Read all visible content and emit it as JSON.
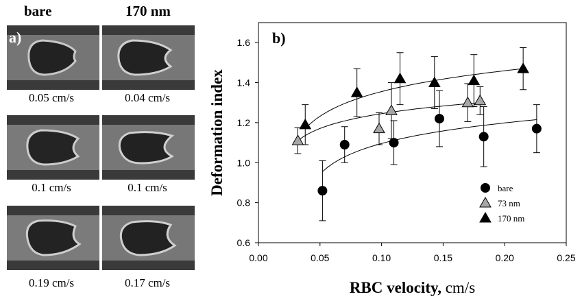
{
  "panel_a": {
    "label": "a)",
    "columns": [
      "bare",
      "170 nm"
    ],
    "rows": [
      {
        "left_caption": "0.05 cm/s",
        "right_caption": "0.04 cm/s"
      },
      {
        "left_caption": "0.1 cm/s",
        "right_caption": "0.1 cm/s"
      },
      {
        "left_caption": "0.19 cm/s",
        "right_caption": "0.17 cm/s"
      }
    ]
  },
  "panel_b": {
    "label": "b)"
  },
  "chart_data": {
    "type": "scatter",
    "xlabel_main": "RBC velocity,",
    "xlabel_unit": "cm/s",
    "ylabel": "Deformation index",
    "xlim": [
      0.0,
      0.25
    ],
    "ylim": [
      0.6,
      1.7
    ],
    "xticks": [
      "0.00",
      "0.05",
      "0.10",
      "0.15",
      "0.20",
      "0.25"
    ],
    "yticks": [
      "0.6",
      "0.8",
      "1.0",
      "1.2",
      "1.4",
      "1.6"
    ],
    "legend_position": "bottom-right",
    "grid": false,
    "series": [
      {
        "name": "bare",
        "marker": "circle",
        "color": "#000000",
        "points": [
          {
            "x": 0.052,
            "y": 0.86,
            "err": 0.15
          },
          {
            "x": 0.07,
            "y": 1.09,
            "err": 0.09
          },
          {
            "x": 0.11,
            "y": 1.1,
            "err": 0.11
          },
          {
            "x": 0.147,
            "y": 1.22,
            "err": 0.14
          },
          {
            "x": 0.183,
            "y": 1.13,
            "err": 0.15
          },
          {
            "x": 0.226,
            "y": 1.17,
            "err": 0.12
          }
        ],
        "fit": {
          "x0": 0.052,
          "x1": 0.226,
          "y0": 0.955,
          "y1": 1.215
        }
      },
      {
        "name": "73 nm",
        "marker": "triangle",
        "color": "#a6a6a6",
        "points": [
          {
            "x": 0.032,
            "y": 1.11,
            "err": 0.065
          },
          {
            "x": 0.098,
            "y": 1.17,
            "err": 0.08
          },
          {
            "x": 0.108,
            "y": 1.26,
            "err": 0.14
          },
          {
            "x": 0.17,
            "y": 1.3,
            "err": 0.095
          },
          {
            "x": 0.18,
            "y": 1.31,
            "err": 0.07
          }
        ],
        "fit": {
          "x0": 0.032,
          "x1": 0.18,
          "y0": 1.11,
          "y1": 1.3
        }
      },
      {
        "name": "170 nm",
        "marker": "triangle",
        "color": "#000000",
        "points": [
          {
            "x": 0.038,
            "y": 1.19,
            "err": 0.1
          },
          {
            "x": 0.08,
            "y": 1.35,
            "err": 0.12
          },
          {
            "x": 0.115,
            "y": 1.42,
            "err": 0.13
          },
          {
            "x": 0.143,
            "y": 1.4,
            "err": 0.13
          },
          {
            "x": 0.175,
            "y": 1.41,
            "err": 0.13
          },
          {
            "x": 0.215,
            "y": 1.47,
            "err": 0.105
          }
        ],
        "fit": {
          "x0": 0.038,
          "x1": 0.215,
          "y0": 1.17,
          "y1": 1.47
        }
      }
    ]
  }
}
